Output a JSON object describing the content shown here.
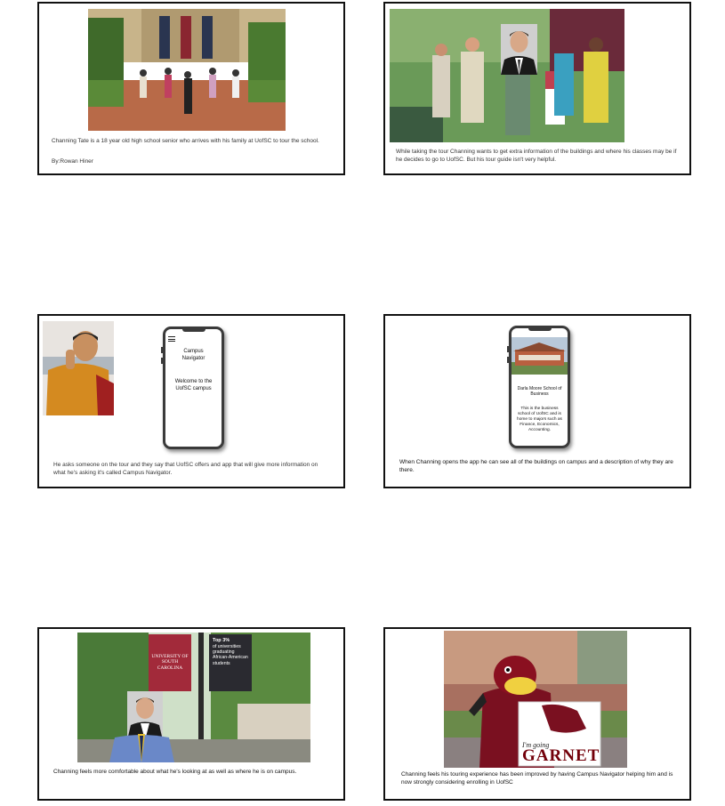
{
  "panels": {
    "p1": {
      "caption": "Channing Tate is a 18 year old high school senior who arrives with his family at UofSC to tour the school.",
      "byline": "By:Rowan Hiner"
    },
    "p2": {
      "caption": "While taking the tour Channing wants to get extra information of the buildings and where his classes may be if he decides to go to UofSC. But his tour guide isn't very helpful."
    },
    "p3": {
      "caption": "He asks someone on the tour and they say that UofSC offers and app that will give more information on what he's asking it's called Campus Navigator.",
      "app_title": "Campus Navigator",
      "app_welcome": "Welcome to the UofSC campus",
      "menu_icon": "hamburger-menu-icon"
    },
    "p4": {
      "caption": "When Channing opens the app he can see all of the buildings on campus and a description of why they are there.",
      "building_name": "Darla Moore School of Business",
      "building_desc": "This is the business school of UofSC and is home to majors such as Finance, Economics, Accounting."
    },
    "p5": {
      "caption": "Channing feels more comfortable about what he's looking at as well as where he is on campus.",
      "banner_left": "UNIVERSITY OF SOUTH CAROLINA",
      "banner_right_bold": "Top 3%",
      "banner_right_text": "of universities graduating African-American students"
    },
    "p6": {
      "caption": "Channing feels his touring experience has been improved by having Campus Navigator helping him and is now strongly considering enrolling in UofSC",
      "sign_small": "I'm going",
      "sign_big": "GARNET"
    }
  },
  "colors": {
    "garnet": "#73000a",
    "border": "#111111"
  }
}
